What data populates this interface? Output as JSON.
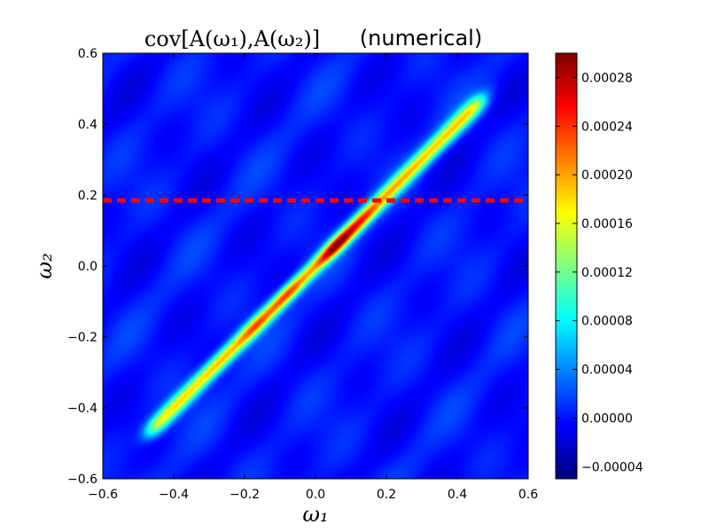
{
  "chart_data": {
    "type": "heatmap",
    "title": {
      "math": "cov[A(ω₁),A(ω₂)]",
      "text": "(numerical)"
    },
    "xlabel": "ω₁",
    "ylabel": "ω₂",
    "xlim": [
      -0.6,
      0.6
    ],
    "ylim": [
      -0.6,
      0.6
    ],
    "xticks": [
      -0.6,
      -0.4,
      -0.2,
      0.0,
      0.2,
      0.4,
      0.6
    ],
    "yticks": [
      -0.6,
      -0.4,
      -0.2,
      0.0,
      0.2,
      0.4,
      0.6
    ],
    "xtick_labels": [
      "−0.6",
      "−0.4",
      "−0.2",
      "0.0",
      "0.2",
      "0.4",
      "0.6"
    ],
    "ytick_labels": [
      "−0.6",
      "−0.4",
      "−0.2",
      "0.0",
      "0.2",
      "0.4",
      "0.6"
    ],
    "colormap": "jet",
    "colorbar": {
      "range": [
        -5e-05,
        0.0003
      ],
      "ticks": [
        -4e-05,
        0.0,
        4e-05,
        8e-05,
        0.00012,
        0.00016,
        0.0002,
        0.00024,
        0.00028
      ],
      "tick_labels": [
        "−0.00004",
        "0.00000",
        "0.00004",
        "0.00008",
        "0.00012",
        "0.00016",
        "0.00020",
        "0.00024",
        "0.00028"
      ]
    },
    "ridge": {
      "description": "diagonal band along ω₁ = ω₂",
      "extent": [
        -0.47,
        0.47
      ],
      "peak_value": 0.0003,
      "peak_at": [
        0.06,
        0.06
      ],
      "secondary_peaks": [
        {
          "omega": [
            0.13,
            0.13
          ],
          "value": 0.00024
        },
        {
          "omega": [
            -0.08,
            -0.08
          ],
          "value": 0.00024
        },
        {
          "omega": [
            -0.17,
            -0.17
          ],
          "value": 0.00023
        },
        {
          "omega": [
            -0.27,
            -0.27
          ],
          "value": 0.0002
        }
      ]
    },
    "background_value": 0.0,
    "reference_line": {
      "orientation": "horizontal",
      "y": 0.185,
      "color": "#ff0000",
      "style": "dashed"
    }
  }
}
